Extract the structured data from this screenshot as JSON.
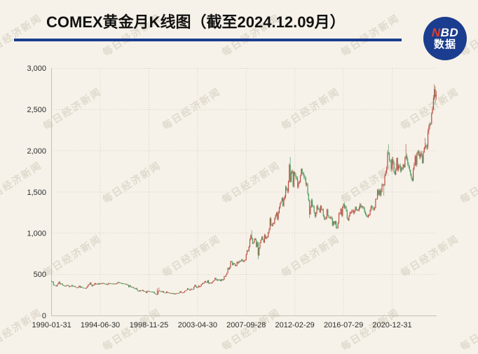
{
  "header": {
    "title": "COMEX黄金月K线图（截至2024.12.09月）",
    "rule_color": "#1b3d8f",
    "logo": {
      "bg_color": "#1b3d8f",
      "red_color": "#e23c2d",
      "text_top_red": "N",
      "text_top_white": "BD",
      "text_bottom": "数据"
    }
  },
  "watermark": {
    "text": "每日经济新闻"
  },
  "chart_data": {
    "type": "candlestick",
    "title": "COMEX黄金月K线图（截至2024.12.09月）",
    "instrument": "COMEX黄金",
    "frequency": "monthly",
    "start_month": "1990-01",
    "end_month": "2024-12",
    "as_of": "2024.12.09",
    "ylim": [
      0,
      3000
    ],
    "y_ticks": [
      "3,000",
      "2,500",
      "2,000",
      "1,500",
      "1,000",
      "500",
      "0"
    ],
    "x_ticks": [
      "1990-01-31",
      "1994-06-30",
      "1998-11-25",
      "2003-04-30",
      "2007-09-28",
      "2012-02-29",
      "2016-07-29",
      "2020-12-31"
    ],
    "x_tick_month_index": [
      0,
      53,
      106,
      159,
      212,
      265,
      318,
      371
    ],
    "grid": "dotted",
    "up_color": "#bf4a3f",
    "down_color": "#4d9b60",
    "monthly_close": [
      410,
      408,
      368,
      367,
      363,
      352,
      372,
      388,
      408,
      380,
      384,
      386,
      366,
      363,
      355,
      357,
      361,
      368,
      362,
      347,
      354,
      357,
      366,
      353,
      354,
      353,
      342,
      336,
      337,
      343,
      358,
      340,
      349,
      339,
      334,
      333,
      330,
      327,
      337,
      354,
      375,
      378,
      400,
      371,
      355,
      369,
      370,
      390,
      377,
      382,
      389,
      377,
      387,
      388,
      384,
      386,
      394,
      384,
      383,
      383,
      374,
      376,
      392,
      390,
      385,
      387,
      383,
      382,
      384,
      383,
      387,
      387,
      405,
      400,
      396,
      391,
      390,
      382,
      387,
      386,
      379,
      379,
      371,
      369,
      345,
      364,
      348,
      340,
      345,
      334,
      326,
      324,
      332,
      311,
      297,
      290,
      304,
      297,
      301,
      308,
      293,
      296,
      288,
      273,
      296,
      292,
      294,
      287,
      285,
      287,
      280,
      286,
      268,
      261,
      255,
      255,
      299,
      300,
      291,
      290,
      283,
      294,
      278,
      275,
      272,
      289,
      276,
      277,
      273,
      265,
      269,
      272,
      264,
      267,
      258,
      264,
      267,
      270,
      266,
      274,
      293,
      278,
      275,
      277,
      282,
      297,
      301,
      308,
      327,
      318,
      304,
      310,
      323,
      317,
      318,
      347,
      368,
      350,
      334,
      339,
      361,
      346,
      355,
      375,
      388,
      386,
      398,
      416,
      402,
      396,
      424,
      388,
      393,
      395,
      391,
      407,
      420,
      425,
      453,
      438,
      422,
      435,
      428,
      435,
      418,
      437,
      429,
      433,
      473,
      470,
      495,
      517,
      575,
      561,
      582,
      654,
      653,
      613,
      634,
      623,
      599,
      603,
      647,
      636,
      651,
      664,
      661,
      677,
      659,
      650,
      665,
      672,
      743,
      789,
      783,
      834,
      923,
      971,
      933,
      871,
      885,
      930,
      918,
      833,
      884,
      730,
      816,
      884,
      919,
      952,
      916,
      883,
      975,
      934,
      953,
      953,
      1008,
      1045,
      1175,
      1096,
      1083,
      1118,
      1113,
      1179,
      1215,
      1242,
      1169,
      1248,
      1307,
      1357,
      1386,
      1421,
      1327,
      1411,
      1439,
      1556,
      1536,
      1502,
      1628,
      1826,
      1620,
      1725,
      1746,
      1566,
      1738,
      1711,
      1668,
      1664,
      1558,
      1604,
      1615,
      1692,
      1776,
      1719,
      1715,
      1676,
      1661,
      1588,
      1597,
      1477,
      1394,
      1224,
      1313,
      1396,
      1327,
      1323,
      1253,
      1202,
      1244,
      1326,
      1291,
      1288,
      1249,
      1327,
      1285,
      1287,
      1208,
      1173,
      1175,
      1184,
      1283,
      1213,
      1184,
      1180,
      1191,
      1171,
      1095,
      1135,
      1114,
      1142,
      1065,
      1060,
      1118,
      1234,
      1233,
      1290,
      1212,
      1322,
      1351,
      1309,
      1316,
      1272,
      1174,
      1152,
      1211,
      1249,
      1249,
      1268,
      1269,
      1242,
      1268,
      1316,
      1280,
      1271,
      1273,
      1303,
      1345,
      1318,
      1325,
      1315,
      1300,
      1252,
      1223,
      1201,
      1192,
      1215,
      1222,
      1281,
      1321,
      1313,
      1292,
      1283,
      1306,
      1410,
      1414,
      1520,
      1466,
      1513,
      1464,
      1517,
      1589,
      1586,
      1577,
      1694,
      1730,
      1781,
      1976,
      1968,
      1886,
      1879,
      1777,
      1895,
      1848,
      1734,
      1708,
      1768,
      1907,
      1770,
      1814,
      1814,
      1757,
      1783,
      1775,
      1829,
      1797,
      1909,
      1937,
      1897,
      1837,
      1807,
      1766,
      1711,
      1662,
      1634,
      1769,
      1824,
      1928,
      1827,
      1969,
      1990,
      1962,
      1919,
      1965,
      1940,
      1848,
      1983,
      2036,
      2063,
      2040,
      2044,
      2230,
      2286,
      2327,
      2326,
      2448,
      2503,
      2635,
      2744,
      2651,
      2680
    ],
    "wick_high_overrides": {
      "115": 330,
      "117": 339,
      "218": 1033,
      "260": 1920,
      "367": 2075,
      "386": 2079,
      "407": 2152,
      "417": 2801,
      "419": 2726
    },
    "wick_low_overrides": {
      "115": 252,
      "133": 255,
      "225": 681,
      "281": 1180,
      "311": 1046,
      "362": 1451,
      "418": 2560
    }
  }
}
